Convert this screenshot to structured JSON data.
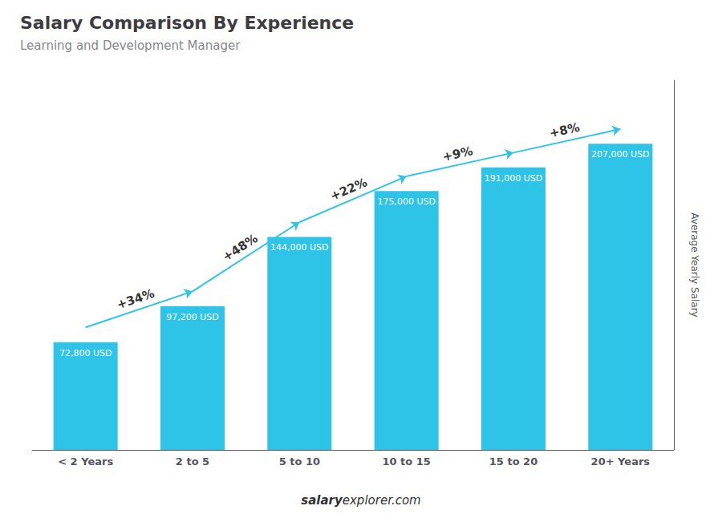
{
  "chart_data": {
    "type": "bar",
    "title": "Salary Comparison By Experience",
    "subtitle": "Learning and Development Manager",
    "categories": [
      "< 2 Years",
      "2 to 5",
      "5 to 10",
      "10 to 15",
      "15 to 20",
      "20+ Years"
    ],
    "values": [
      72800,
      97200,
      144000,
      175000,
      191000,
      207000
    ],
    "value_labels": [
      "72,800 USD",
      "97,200 USD",
      "144,000 USD",
      "175,000 USD",
      "191,000 USD",
      "207,000 USD"
    ],
    "data_labels": true,
    "color": "#2ec4e8",
    "ylabel": "Average Yearly Salary",
    "ylim": [
      0,
      250000
    ],
    "tick_labels": "x",
    "grid": false,
    "annotations": [
      {
        "text": "+34%",
        "from": "< 2 Years",
        "to": "2 to 5"
      },
      {
        "text": "+48%",
        "from": "2 to 5",
        "to": "5 to 10"
      },
      {
        "text": "+22%",
        "from": "5 to 10",
        "to": "10 to 15"
      },
      {
        "text": "+9%",
        "from": "10 to 15",
        "to": "15 to 20"
      },
      {
        "text": "+8%",
        "from": "15 to 20",
        "to": "20+ Years"
      },
      {
        "text": "salary"
      },
      {
        "text": "explorer.com"
      }
    ]
  }
}
